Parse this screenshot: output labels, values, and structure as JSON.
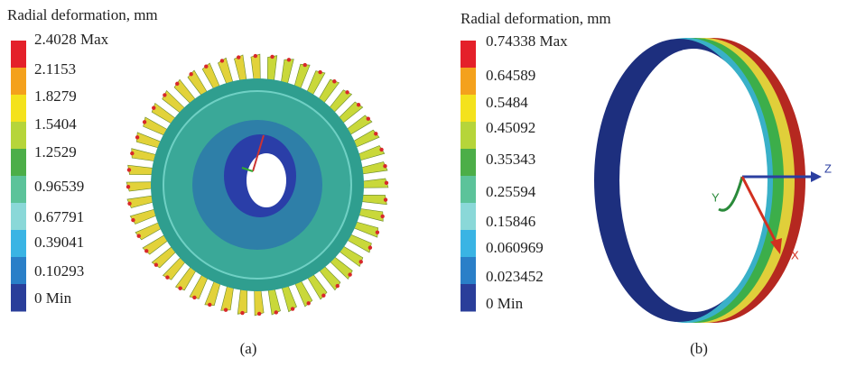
{
  "panels": [
    {
      "caption": "(a)",
      "legend_title": "Radial deformation, mm",
      "legend_labels": [
        "2.4028 Max",
        "2.1153",
        "1.8279",
        "1.5404",
        "1.2529",
        "0.96539",
        "0.67791",
        "0.39041",
        "0.10293",
        "0 Min"
      ]
    },
    {
      "caption": "(b)",
      "legend_title": "Radial deformation, mm",
      "legend_labels": [
        "0.74338 Max",
        "0.64589",
        "0.5484",
        "0.45092",
        "0.35343",
        "0.25594",
        "0.15846",
        "0.060969",
        "0.023452",
        "0 Min"
      ],
      "axis_labels": [
        "Z",
        "Y",
        "X"
      ]
    }
  ]
}
